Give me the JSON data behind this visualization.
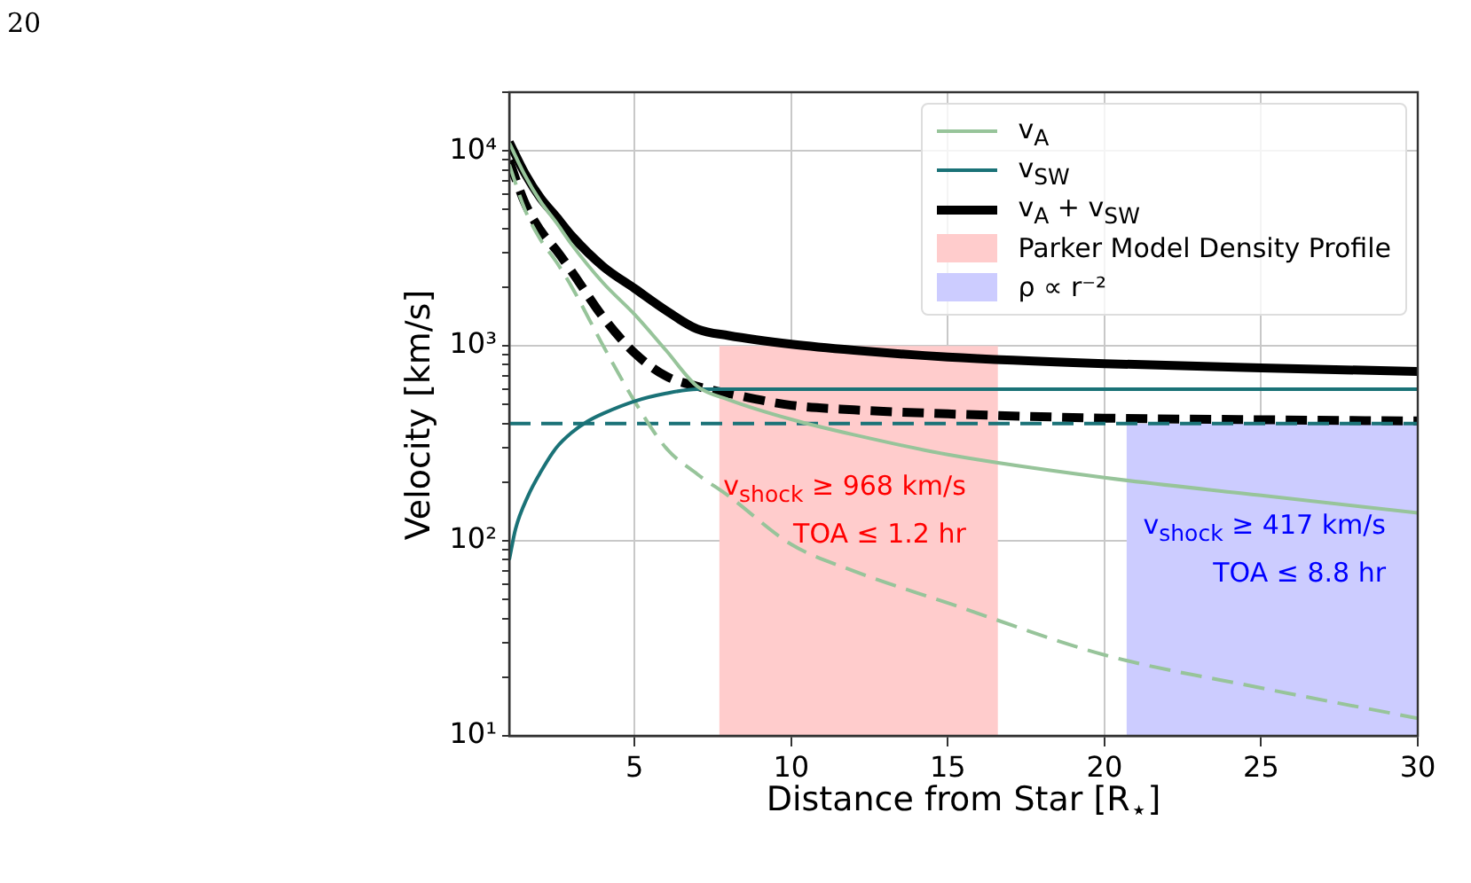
{
  "chart_data": {
    "type": "line",
    "xlabel": "Distance from Star [R$_{⋆}$]",
    "ylabel": "Velocity [km/s]",
    "xlim": [
      1,
      30
    ],
    "xticks": [
      5,
      10,
      15,
      20,
      25,
      30
    ],
    "ylim": [
      10,
      20000
    ],
    "yticks": [
      {
        "value": 10,
        "label": "10¹"
      },
      {
        "value": 20,
        "label": null
      },
      {
        "value": 30,
        "label": null
      },
      {
        "value": 40,
        "label": null
      },
      {
        "value": 50,
        "label": null
      },
      {
        "value": 60,
        "label": null
      },
      {
        "value": 70,
        "label": null
      },
      {
        "value": 80,
        "label": null
      },
      {
        "value": 90,
        "label": null
      },
      {
        "value": 100,
        "label": "10²"
      },
      {
        "value": 200,
        "label": null
      },
      {
        "value": 300,
        "label": null
      },
      {
        "value": 400,
        "label": null
      },
      {
        "value": 500,
        "label": null
      },
      {
        "value": 600,
        "label": null
      },
      {
        "value": 700,
        "label": null
      },
      {
        "value": 800,
        "label": null
      },
      {
        "value": 900,
        "label": null
      },
      {
        "value": 1000,
        "label": "10³"
      },
      {
        "value": 2000,
        "label": null
      },
      {
        "value": 3000,
        "label": null
      },
      {
        "value": 4000,
        "label": null
      },
      {
        "value": 5000,
        "label": null
      },
      {
        "value": 6000,
        "label": null
      },
      {
        "value": 7000,
        "label": null
      },
      {
        "value": 8000,
        "label": null
      },
      {
        "value": 9000,
        "label": null
      },
      {
        "value": 10000,
        "label": "10⁴"
      },
      {
        "value": 20000,
        "label": null
      }
    ],
    "log": "y",
    "grid": true,
    "legend": "top right",
    "marker": "none",
    "series": [
      {
        "name": "v$_{A}$",
        "color": "#97c49a",
        "line_style": "solid",
        "x": [
          1,
          1.5,
          2,
          2.5,
          3,
          4,
          5,
          6,
          7,
          8,
          10,
          12,
          15,
          20,
          25,
          30
        ],
        "values": [
          11000,
          7500,
          5500,
          4300,
          3300,
          2100,
          1450,
          950,
          620,
          530,
          420,
          350,
          277,
          211,
          171,
          139
        ]
      },
      {
        "name": "v$_{SW}$",
        "color": "#1a7277",
        "line_style": "solid",
        "x": [
          1,
          1.2,
          1.6,
          2,
          2.5,
          3,
          3.5,
          4,
          5,
          6,
          7,
          30
        ],
        "values": [
          80,
          115,
          170,
          225,
          300,
          360,
          410,
          450,
          520,
          570,
          600,
          600
        ]
      },
      {
        "name": "v$_{A}$ + v$_{SW}$",
        "color": "#000000",
        "line_style": "solid",
        "x": [
          1,
          1.5,
          2,
          2.5,
          3,
          4,
          5,
          6,
          7,
          8,
          10,
          12,
          15,
          20,
          25,
          30
        ],
        "values": [
          11080,
          7660,
          5725,
          4600,
          3660,
          2550,
          1970,
          1520,
          1220,
          1130,
          1020,
          950,
          877,
          811,
          771,
          739
        ]
      },
      {
        "color": "#97c49a",
        "line_style": "dashed",
        "x": [
          1,
          1.5,
          2,
          2.5,
          3,
          4,
          5,
          6,
          7,
          8,
          10,
          12,
          15,
          20,
          25,
          30
        ],
        "values": [
          8500,
          5000,
          3500,
          2700,
          2000,
          1000,
          520,
          300,
          220,
          170,
          96,
          70,
          48,
          26,
          17.6,
          12.3
        ]
      },
      {
        "color": "#1a7277",
        "line_style": "dashed",
        "x": [
          1,
          30
        ],
        "values": [
          400,
          400
        ]
      },
      {
        "color": "#000000",
        "line_style": "dashed",
        "x": [
          1,
          1.5,
          2,
          2.5,
          3,
          4,
          5,
          6,
          7,
          8,
          10,
          12,
          15,
          20,
          25,
          30
        ],
        "values": [
          8900,
          5400,
          3900,
          3100,
          2400,
          1400,
          920,
          700,
          620,
          570,
          496,
          470,
          448,
          426,
          418,
          412
        ]
      },
      {
        "type": "area",
        "name": "Parker Model Density Profile",
        "color": "#ffcccc",
        "x": [
          7.7,
          16.6
        ],
        "values": [
          1000,
          1000
        ]
      },
      {
        "type": "area",
        "name": "ρ ∝ r⁻²",
        "color": "#ccccff",
        "x": [
          20.7,
          30
        ],
        "values": [
          400,
          400
        ]
      }
    ],
    "annotations": [
      "20",
      "v$_{shock}$ ≥ 968 km/s\nTOA ≤ 1.2 hr",
      "v$_{shock}$ ≥ 417 km/s\nTOA ≤ 8.8 hr"
    ]
  }
}
